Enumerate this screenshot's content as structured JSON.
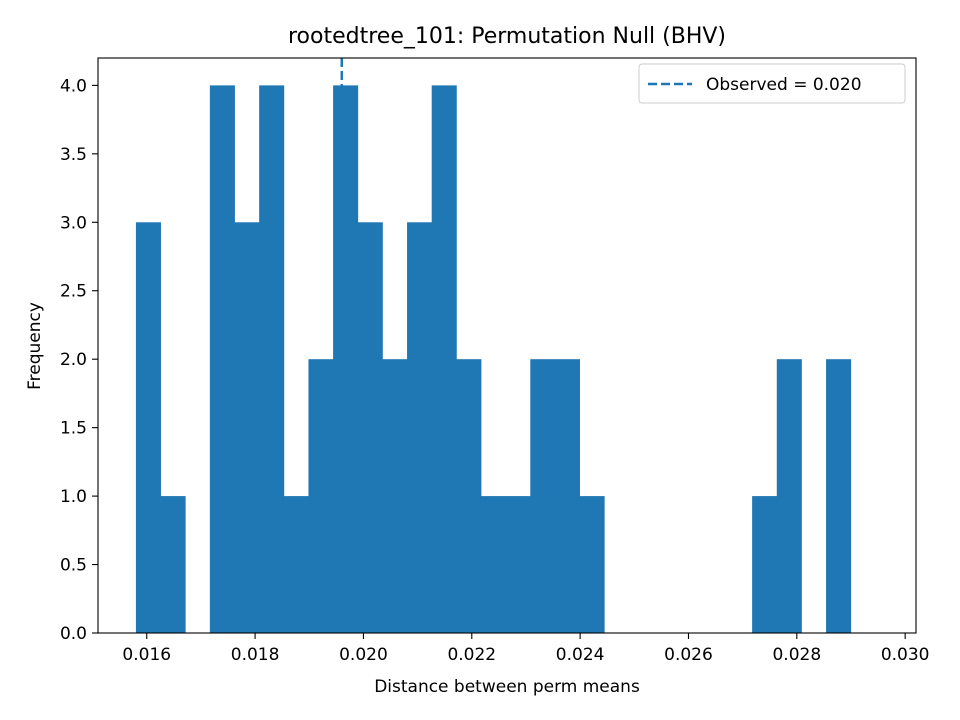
{
  "chart_data": {
    "type": "bar",
    "title": "rootedtree_101: Permutation Null (BHV)",
    "xlabel": "Distance between perm means",
    "ylabel": "Frequency",
    "xlim": [
      0.0151,
      0.0302
    ],
    "ylim": [
      0,
      4.2
    ],
    "x_ticks": [
      "0.016",
      "0.018",
      "0.020",
      "0.022",
      "0.024",
      "0.026",
      "0.028",
      "0.030"
    ],
    "y_ticks": [
      "0.0",
      "0.5",
      "1.0",
      "1.5",
      "2.0",
      "2.5",
      "3.0",
      "3.5",
      "4.0"
    ],
    "bin_start": 0.0158,
    "bin_width": 0.000455,
    "values": [
      3,
      1,
      0,
      4,
      3,
      4,
      1,
      2,
      4,
      3,
      2,
      3,
      4,
      2,
      1,
      1,
      2,
      2,
      1,
      0,
      0,
      0,
      0,
      0,
      0,
      1,
      2,
      0,
      2
    ],
    "bar_color": "#1f77b4",
    "observed": {
      "value": 0.0196,
      "label": "Observed = 0.020",
      "color": "#1f77b4",
      "style": "dashed"
    },
    "legend_position": "upper right",
    "grid": false
  }
}
